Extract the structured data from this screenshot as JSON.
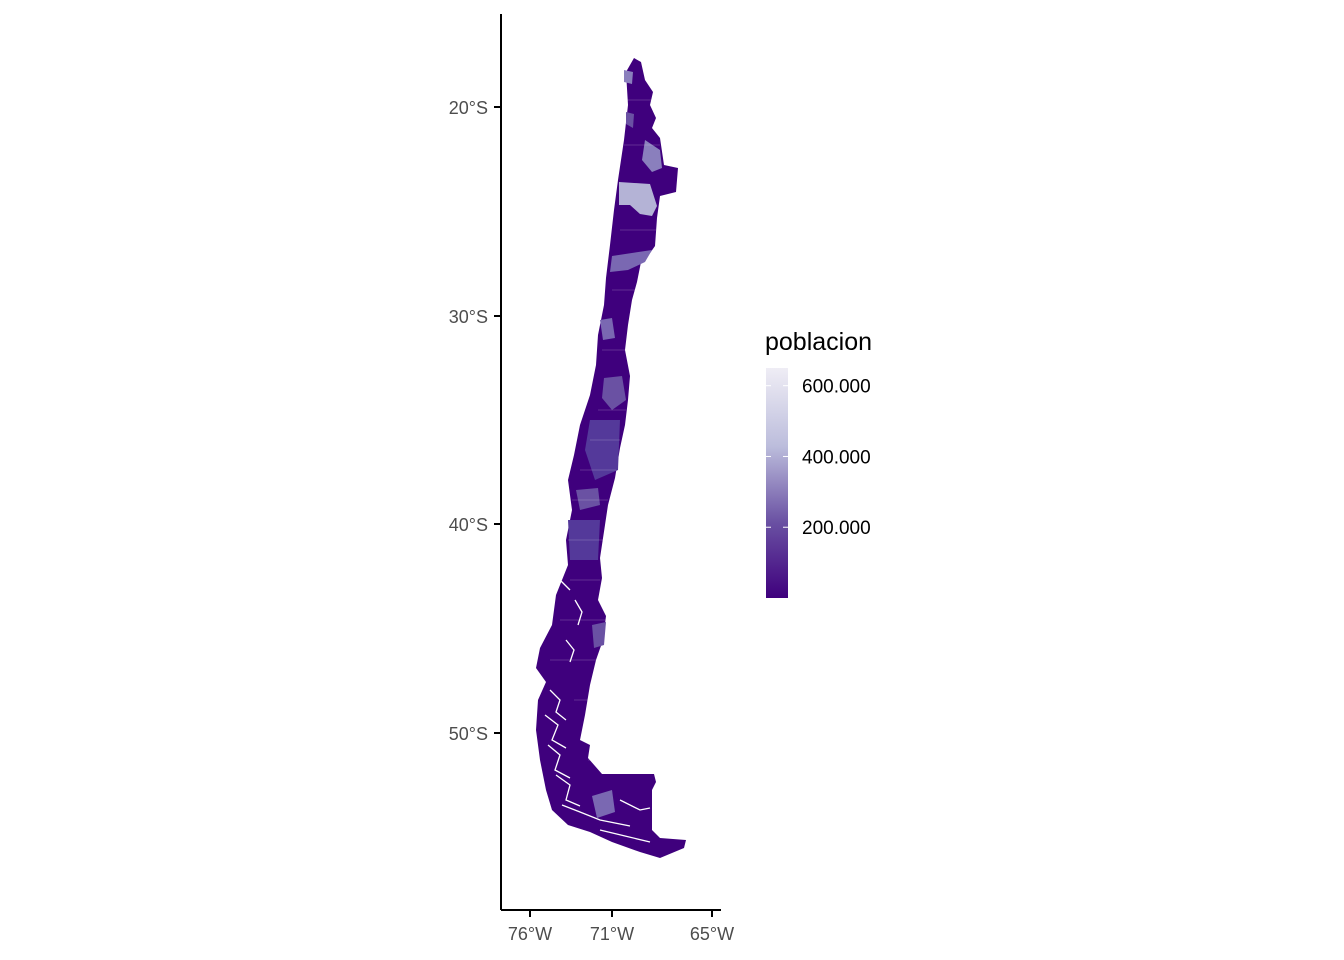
{
  "map": {
    "fill_attribute": "poblacion",
    "y_axis_labels": [
      "20°S",
      "30°S",
      "40°S",
      "50°S"
    ],
    "x_axis_labels": [
      "76°W",
      "71°W",
      "65°W"
    ],
    "colors": {
      "low": "#3f007d",
      "mid": "#6a51a3",
      "high": "#efedf5",
      "axis": "#000000",
      "tick_text": "#4d4d4d"
    }
  },
  "legend": {
    "title": "poblacion",
    "breaks": [
      {
        "label": "600.000",
        "value": 600000
      },
      {
        "label": "400.000",
        "value": 400000
      },
      {
        "label": "200.000",
        "value": 200000
      }
    ],
    "range": [
      0,
      650000
    ]
  }
}
